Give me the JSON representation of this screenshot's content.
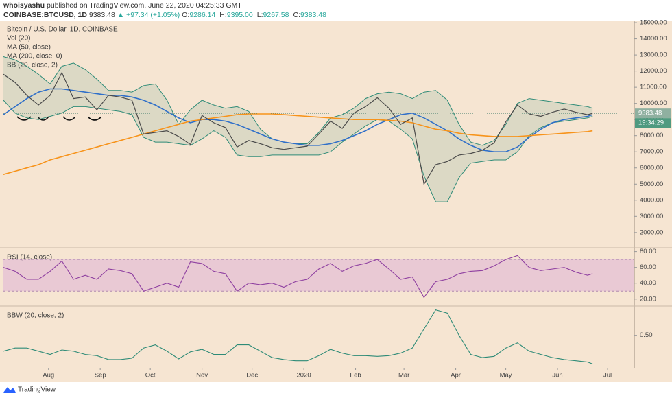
{
  "header": {
    "author": "whoisyashu",
    "published": "published on TradingView.com, June 22, 2020 04:25:33 GMT",
    "symbol": "COINBASE:BTCUSD, 1D",
    "last": "9383.48",
    "change": "▲ +97.34 (+1.05%)",
    "ohlc": [
      {
        "label": "O:",
        "value": "9286.14"
      },
      {
        "label": "H:",
        "value": "9395.00"
      },
      {
        "label": "L:",
        "value": "9267.58"
      },
      {
        "label": "C:",
        "value": "9383.48"
      }
    ]
  },
  "footer": "TradingView",
  "chart_data": [
    {
      "type": "line",
      "title": "Bitcoin / U.S. Dollar, 1D, COINBASE",
      "volume_study": "Vol (20)",
      "xlim": [
        "2019-07-05",
        "2020-07-17"
      ],
      "x": [
        "2019-07-05",
        "2019-07-12",
        "2019-07-19",
        "2019-07-26",
        "2019-08-02",
        "2019-08-09",
        "2019-08-16",
        "2019-08-23",
        "2019-08-30",
        "2019-09-06",
        "2019-09-13",
        "2019-09-20",
        "2019-09-27",
        "2019-10-04",
        "2019-10-11",
        "2019-10-18",
        "2019-10-25",
        "2019-11-01",
        "2019-11-08",
        "2019-11-15",
        "2019-11-22",
        "2019-11-29",
        "2019-12-06",
        "2019-12-13",
        "2019-12-20",
        "2019-12-27",
        "2020-01-03",
        "2020-01-10",
        "2020-01-17",
        "2020-01-24",
        "2020-01-31",
        "2020-02-07",
        "2020-02-14",
        "2020-02-21",
        "2020-02-28",
        "2020-03-06",
        "2020-03-13",
        "2020-03-20",
        "2020-03-27",
        "2020-04-03",
        "2020-04-10",
        "2020-04-17",
        "2020-04-24",
        "2020-05-01",
        "2020-05-08",
        "2020-05-15",
        "2020-05-22",
        "2020-05-29",
        "2020-06-05",
        "2020-06-12",
        "2020-06-19",
        "2020-06-22"
      ],
      "price": {
        "color": "#4a4a4a",
        "values": [
          11800,
          11300,
          10500,
          9900,
          10500,
          11900,
          10300,
          10400,
          9600,
          10500,
          10400,
          10200,
          8100,
          8200,
          8300,
          7950,
          7450,
          9250,
          8800,
          8500,
          7300,
          7700,
          7500,
          7250,
          7150,
          7250,
          7350,
          8100,
          8900,
          8450,
          9400,
          9800,
          10350,
          9700,
          8700,
          9100,
          5000,
          6200,
          6400,
          6800,
          6900,
          7100,
          7550,
          8850,
          9900,
          9350,
          9200,
          9450,
          9650,
          9450,
          9300,
          9383.48
        ]
      },
      "series": [
        {
          "name": "MA (50, close)",
          "color": "#2f6fc9",
          "values": [
            9300,
            9800,
            10300,
            10700,
            10900,
            10900,
            10800,
            10700,
            10600,
            10500,
            10500,
            10400,
            10200,
            9900,
            9500,
            9100,
            8800,
            9000,
            9000,
            8900,
            8700,
            8400,
            8100,
            7800,
            7600,
            7500,
            7400,
            7400,
            7500,
            7700,
            8000,
            8300,
            8700,
            9000,
            9300,
            9400,
            9100,
            8700,
            8300,
            7800,
            7400,
            7100,
            7000,
            7000,
            7300,
            7900,
            8400,
            8800,
            9000,
            9100,
            9200,
            9300
          ]
        },
        {
          "name": "MA (200, close, 0)",
          "color": "#f7931a",
          "values": [
            5600,
            5800,
            6000,
            6200,
            6500,
            6700,
            6900,
            7100,
            7300,
            7500,
            7700,
            7900,
            8100,
            8300,
            8500,
            8700,
            8900,
            9000,
            9100,
            9200,
            9300,
            9350,
            9350,
            9350,
            9300,
            9250,
            9200,
            9150,
            9100,
            9050,
            9000,
            9000,
            9000,
            8950,
            8900,
            8800,
            8600,
            8400,
            8300,
            8150,
            8050,
            8000,
            7950,
            7950,
            7950,
            8000,
            8050,
            8100,
            8150,
            8200,
            8250,
            8300
          ]
        }
      ],
      "bands": {
        "name": "BB (20, close, 2)",
        "color": "#2e8b77",
        "upper": [
          12900,
          12700,
          12300,
          11800,
          11200,
          12300,
          12500,
          12100,
          11500,
          10800,
          10800,
          10700,
          11100,
          11200,
          10200,
          8700,
          9600,
          10200,
          9900,
          9700,
          9800,
          9500,
          8400,
          7800,
          7600,
          7500,
          7500,
          8200,
          9100,
          9300,
          9700,
          10300,
          10600,
          10700,
          10600,
          10300,
          10700,
          10800,
          10200,
          8700,
          7600,
          7400,
          7700,
          8700,
          10000,
          10300,
          10200,
          10100,
          10000,
          9900,
          9800,
          9700
        ],
        "lower": [
          10200,
          9400,
          9100,
          9000,
          9200,
          9400,
          9800,
          9800,
          9700,
          9600,
          9500,
          9300,
          7900,
          7600,
          7600,
          7500,
          7400,
          7800,
          8300,
          7900,
          6800,
          6700,
          6700,
          6800,
          6800,
          6800,
          6800,
          6800,
          7000,
          7600,
          8100,
          8600,
          9000,
          8900,
          8400,
          7800,
          5500,
          3900,
          3900,
          5400,
          6300,
          6400,
          6500,
          6500,
          7000,
          8000,
          8500,
          8800,
          8900,
          9000,
          9100,
          9200
        ]
      },
      "ylim": [
        1100,
        15130
      ],
      "yticks": [
        {
          "value": 2000,
          "label": "2000.00"
        },
        {
          "value": 3000,
          "label": "3000.00"
        },
        {
          "value": 4000,
          "label": "4000.00"
        },
        {
          "value": 5000,
          "label": "5000.00"
        },
        {
          "value": 6000,
          "label": "6000.00"
        },
        {
          "value": 7000,
          "label": "7000.00"
        },
        {
          "value": 8000,
          "label": "8000.00"
        },
        {
          "value": 9000,
          "label": "9000.00"
        },
        {
          "value": 10000,
          "label": "10000.00"
        },
        {
          "value": 11000,
          "label": "11000.00"
        },
        {
          "value": 12000,
          "label": "12000.00"
        },
        {
          "value": 13000,
          "label": "13000.00"
        },
        {
          "value": 14000,
          "label": "14000.00"
        },
        {
          "value": 15000,
          "label": "15000.00"
        }
      ],
      "countdown": "19:34:29"
    },
    {
      "type": "line",
      "title": "RSI (14, close)",
      "xlim": [
        "2019-07-05",
        "2020-07-17"
      ],
      "color": "#8e3fa0",
      "values": [
        60,
        55,
        45,
        45,
        55,
        68,
        45,
        50,
        45,
        58,
        56,
        52,
        30,
        35,
        40,
        35,
        67,
        65,
        55,
        52,
        30,
        40,
        38,
        40,
        35,
        42,
        45,
        58,
        65,
        55,
        62,
        65,
        70,
        58,
        45,
        48,
        22,
        42,
        45,
        52,
        55,
        56,
        62,
        70,
        75,
        60,
        56,
        58,
        60,
        54,
        50,
        52
      ],
      "band": [
        30,
        70
      ],
      "band_color": "#d9a6d8",
      "ylim": [
        12,
        84
      ],
      "yticks": [
        {
          "value": 20,
          "label": "20.00"
        },
        {
          "value": 40,
          "label": "40.00"
        },
        {
          "value": 60,
          "label": "60.00"
        },
        {
          "value": 80,
          "label": "80.00"
        }
      ]
    },
    {
      "type": "line",
      "title": "BBW (20, close, 2)",
      "xlim": [
        "2019-07-05",
        "2020-07-17"
      ],
      "color": "#2e8b77",
      "values": [
        0.25,
        0.3,
        0.3,
        0.25,
        0.2,
        0.27,
        0.25,
        0.2,
        0.18,
        0.12,
        0.12,
        0.14,
        0.3,
        0.35,
        0.25,
        0.13,
        0.24,
        0.28,
        0.2,
        0.2,
        0.35,
        0.35,
        0.25,
        0.15,
        0.12,
        0.1,
        0.1,
        0.18,
        0.28,
        0.22,
        0.18,
        0.18,
        0.17,
        0.18,
        0.22,
        0.3,
        0.6,
        0.9,
        0.85,
        0.5,
        0.2,
        0.15,
        0.17,
        0.3,
        0.38,
        0.25,
        0.2,
        0.15,
        0.12,
        0.1,
        0.08,
        0.05
      ],
      "ylim": [
        0,
        0.95
      ],
      "yticks": [
        {
          "value": 0.5,
          "label": "0.50"
        }
      ],
      "xticks": [
        {
          "value": "2019-08-01",
          "label": "Aug"
        },
        {
          "value": "2019-09-01",
          "label": "Sep"
        },
        {
          "value": "2019-10-01",
          "label": "Oct"
        },
        {
          "value": "2019-11-01",
          "label": "Nov"
        },
        {
          "value": "2019-12-01",
          "label": "Dec"
        },
        {
          "value": "2020-01-01",
          "label": "2020"
        },
        {
          "value": "2020-02-01",
          "label": "Feb"
        },
        {
          "value": "2020-03-01",
          "label": "Mar"
        },
        {
          "value": "2020-04-01",
          "label": "Apr"
        },
        {
          "value": "2020-05-01",
          "label": "May"
        },
        {
          "value": "2020-06-01",
          "label": "Jun"
        },
        {
          "value": "2020-07-01",
          "label": "Jul"
        }
      ]
    }
  ]
}
